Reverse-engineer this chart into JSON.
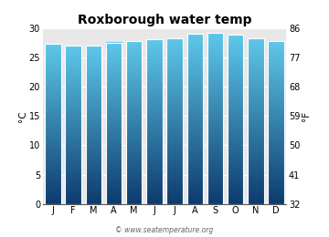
{
  "title": "Roxborough water temp",
  "months": [
    "J",
    "F",
    "M",
    "A",
    "M",
    "J",
    "J",
    "A",
    "S",
    "O",
    "N",
    "D"
  ],
  "values_c": [
    27.4,
    27.1,
    27.1,
    27.6,
    27.9,
    28.2,
    28.3,
    29.1,
    29.2,
    28.9,
    28.3,
    27.8
  ],
  "ylim_c": [
    0,
    30
  ],
  "ylim_f": [
    32,
    86
  ],
  "yticks_c": [
    0,
    5,
    10,
    15,
    20,
    25,
    30
  ],
  "yticks_f": [
    32,
    41,
    50,
    59,
    68,
    77,
    86
  ],
  "ylabel_left": "°C",
  "ylabel_right": "°F",
  "bar_color_top": "#5ec8ea",
  "bar_color_bottom": "#0d3b6e",
  "background_color": "#ffffff",
  "plot_bg_color": "#e8e8e8",
  "title_fontsize": 10,
  "tick_fontsize": 7,
  "label_fontsize": 7.5,
  "watermark": "© www.seatemperature.org",
  "bar_width": 0.78,
  "gradient_steps": 200
}
